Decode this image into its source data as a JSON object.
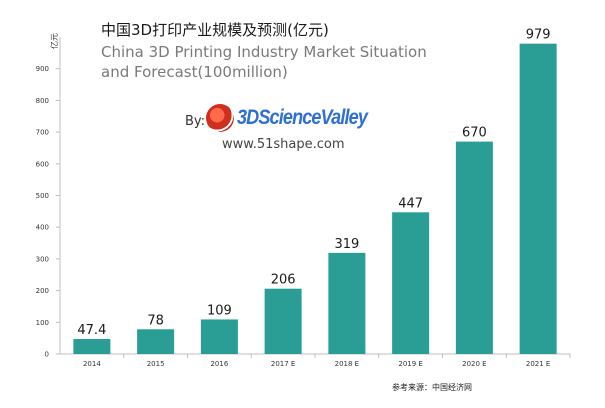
{
  "header": {
    "title_zh": "中国3D打印产业规模及预测(亿元)",
    "title_en": "China 3D Printing Industry Market Situation and Forecast(100million)"
  },
  "watermark": {
    "by_label": "By:",
    "brand": "3DScienceValley",
    "url": "www.51shape.com"
  },
  "footer": {
    "source": "参考来源：中国经济网"
  },
  "colors": {
    "bar": "#2a9d94",
    "axis": "#bfbfbf"
  },
  "chart_data": {
    "type": "bar",
    "title": "中国3D打印产业规模及预测(亿元)",
    "subtitle": "China 3D Printing Industry Market Situation and Forecast(100million)",
    "ylabel": "亿元",
    "xlabel": "",
    "categories": [
      "2014",
      "2015",
      "2016",
      "2017 E",
      "2018 E",
      "2019 E",
      "2020 E",
      "2021 E"
    ],
    "values": [
      47.4,
      78,
      109,
      206,
      319,
      447,
      670,
      979
    ],
    "value_labels": [
      "47.4",
      "78",
      "109",
      "206",
      "319",
      "447",
      "670",
      "979"
    ],
    "ylim": [
      0,
      1000
    ],
    "yticks": [
      0,
      100,
      200,
      300,
      400,
      500,
      600,
      700,
      800,
      900
    ],
    "grid": false,
    "legend": "none"
  }
}
